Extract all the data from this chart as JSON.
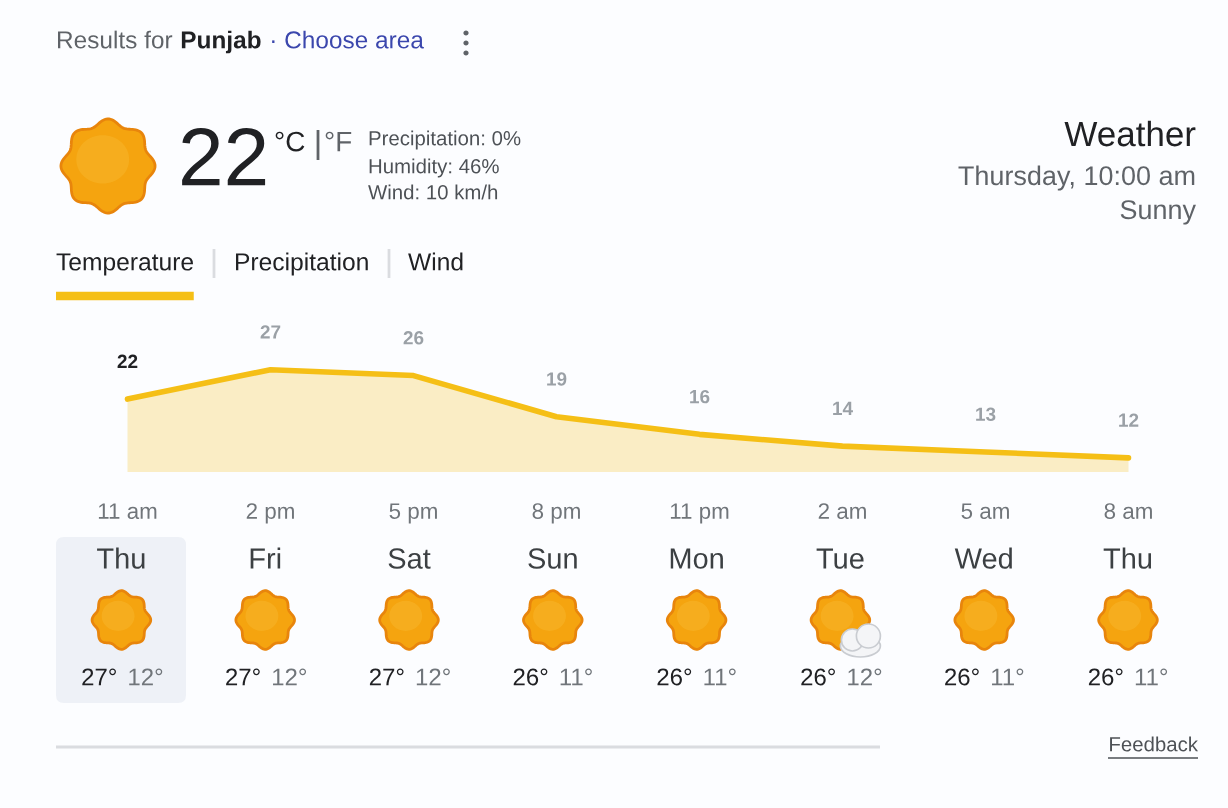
{
  "chart_data": {
    "type": "area",
    "title": "Weather",
    "subtitle": "Thursday, 10:00 am",
    "categories": [
      "11 am",
      "2 pm",
      "5 pm",
      "8 pm",
      "11 pm",
      "2 am",
      "5 am",
      "8 am"
    ],
    "values": [
      22,
      27,
      26,
      19,
      16,
      14,
      13,
      12
    ],
    "data_labels": true,
    "color": "#f5bf16",
    "tick_labels": "x",
    "annotations": [
      "Results for",
      "Punjab",
      "· Choose area",
      "22",
      "°C",
      "°F",
      "Precipitation: 0%",
      "Humidity: 46%",
      "Wind: 10 km/h",
      "Sunny",
      "Temperature",
      "Precipitation",
      "Wind",
      "Thu",
      "27°",
      "12°",
      "Fri",
      "27°",
      "12°",
      "Sat",
      "27°",
      "12°",
      "Sun",
      "26°",
      "11°",
      "Mon",
      "26°",
      "11°",
      "Tue",
      "26°",
      "12°",
      "Wed",
      "26°",
      "11°",
      "Thu",
      "26°",
      "11°",
      "Feedback"
    ]
  }
}
